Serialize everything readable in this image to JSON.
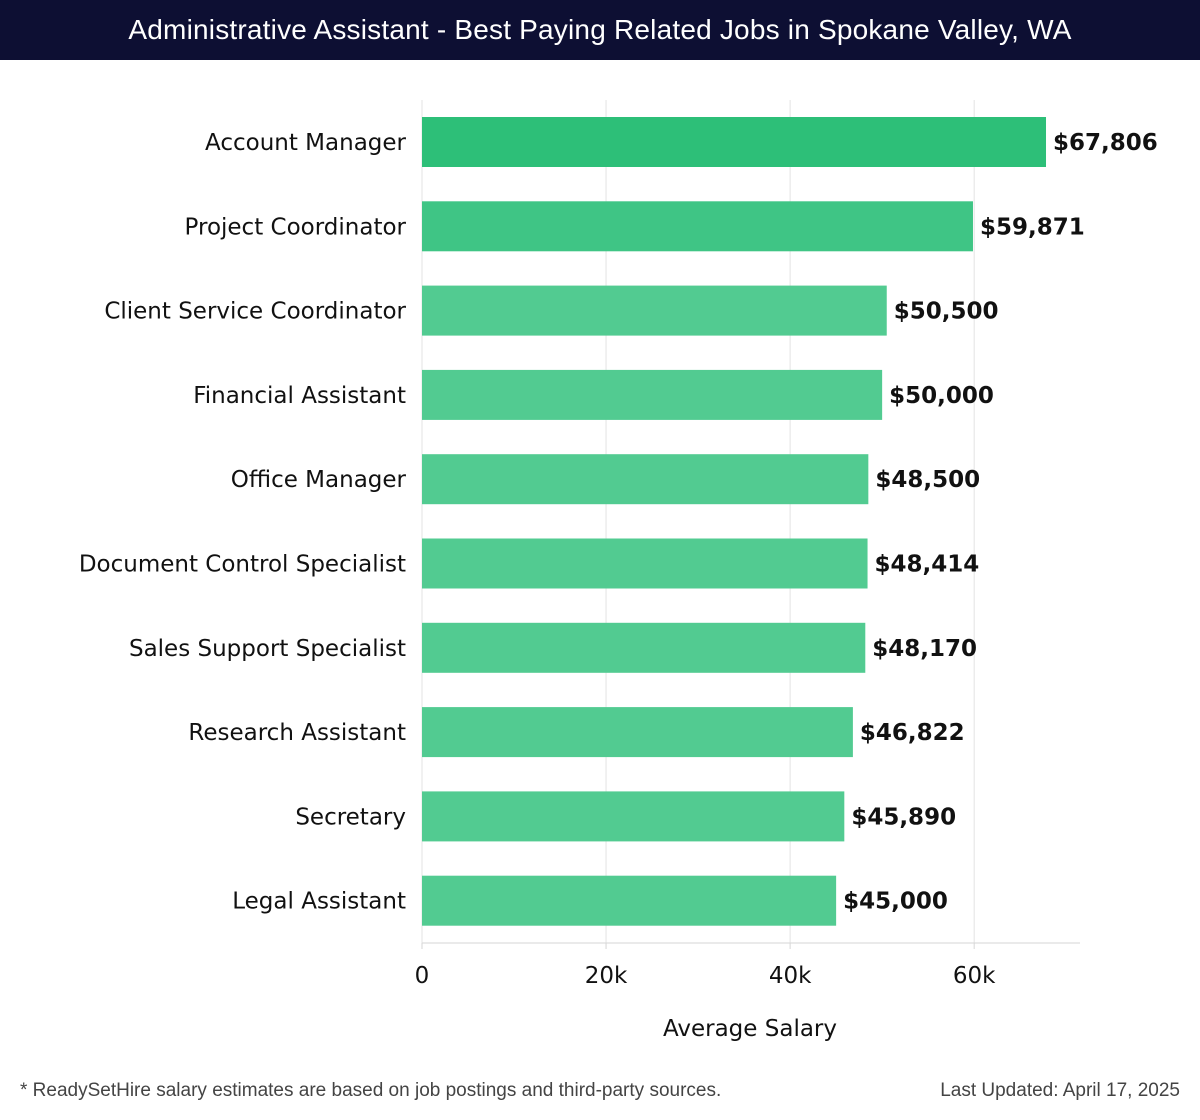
{
  "header": {
    "title": "Administrative Assistant - Best Paying Related Jobs in Spokane Valley, WA"
  },
  "chart_data": {
    "type": "bar",
    "orientation": "horizontal",
    "categories": [
      "Account Manager",
      "Project Coordinator",
      "Client Service Coordinator",
      "Financial Assistant",
      "Office Manager",
      "Document Control Specialist",
      "Sales Support Specialist",
      "Research Assistant",
      "Secretary",
      "Legal Assistant"
    ],
    "values": [
      67806,
      59871,
      50500,
      50000,
      48500,
      48414,
      48170,
      46822,
      45890,
      45000
    ],
    "value_labels": [
      "$67,806",
      "$59,871",
      "$50,500",
      "$50,000",
      "$48,500",
      "$48,414",
      "$48,170",
      "$46,822",
      "$45,890",
      "$45,000"
    ],
    "xlabel": "Average Salary",
    "ylabel": "",
    "xticks": [
      0,
      20000,
      40000,
      60000
    ],
    "xtick_labels": [
      "0",
      "20k",
      "40k",
      "60k"
    ],
    "xlim": [
      0,
      71500
    ],
    "grid": true,
    "colors": {
      "top_bar": "#2dbf78",
      "second_bar": "#3fc585",
      "bars": "#52cb91",
      "grid": "#e3e3e3",
      "axis": "#d6d6d6",
      "header_bg": "#0d0f33"
    }
  },
  "footer": {
    "note": "* ReadySetHire salary estimates are based on job postings and third-party sources.",
    "updated": "Last Updated: April 17, 2025"
  }
}
